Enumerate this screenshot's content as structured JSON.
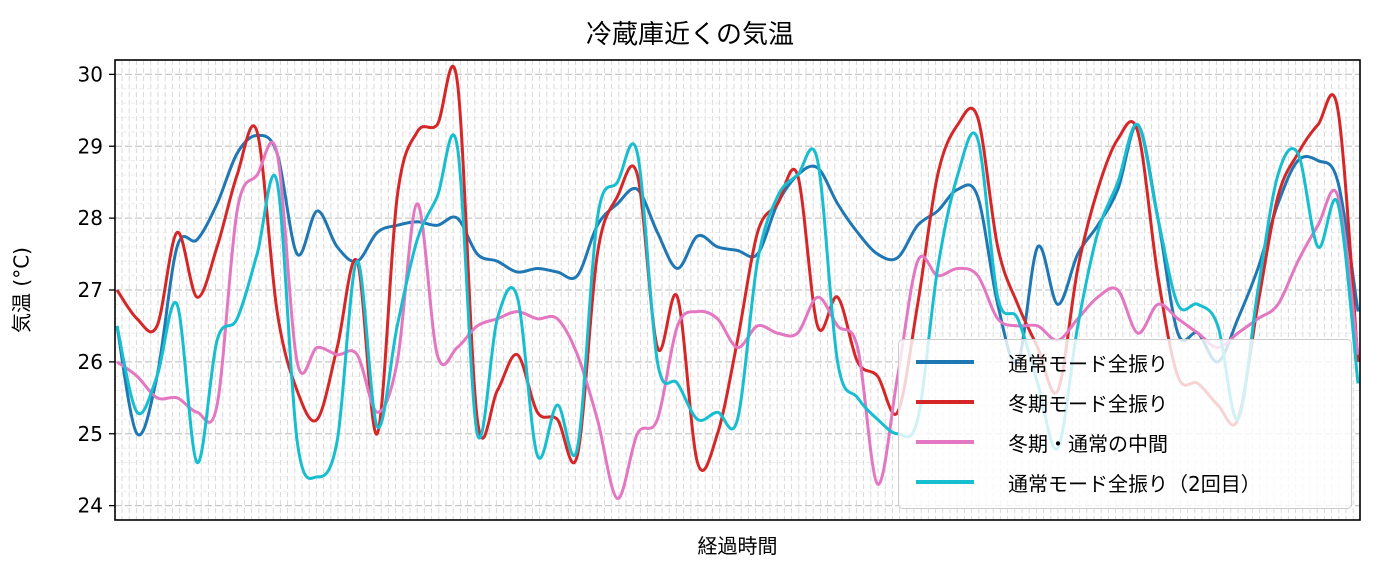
{
  "chart_data": {
    "type": "line",
    "title": "冷蔵庫近くの気温",
    "xlabel": "経過時間",
    "ylabel": "気温 (°C)",
    "ylim": [
      23.8,
      30.2
    ],
    "yticks": [
      24,
      25,
      26,
      27,
      28,
      29,
      30
    ],
    "xticks_labeled": false,
    "grid": {
      "major": true,
      "minor": true,
      "style": "dashed",
      "color": "#cccccc"
    },
    "legend_position": "lower right",
    "x": [
      0,
      1,
      2,
      3,
      4,
      5,
      6,
      7,
      8,
      9,
      10,
      11,
      12,
      13,
      14,
      15,
      16,
      17,
      18,
      19,
      20,
      21,
      22,
      23,
      24,
      25,
      26,
      27,
      28,
      29,
      30,
      31,
      32,
      33,
      34,
      35,
      36,
      37,
      38,
      39,
      40,
      41,
      42,
      43,
      44,
      45,
      46,
      47,
      48,
      49,
      50,
      51,
      52,
      53,
      54,
      55,
      56,
      57,
      58,
      59,
      60,
      61,
      62
    ],
    "series": [
      {
        "name": "通常モード全振り",
        "color": "#1f77b4",
        "values": [
          26.5,
          25.0,
          25.8,
          27.6,
          27.7,
          28.2,
          28.9,
          29.15,
          28.9,
          27.5,
          28.1,
          27.6,
          27.4,
          27.8,
          27.9,
          27.95,
          27.9,
          28.0,
          27.5,
          27.4,
          27.25,
          27.3,
          27.25,
          27.2,
          27.9,
          28.2,
          28.4,
          27.8,
          27.3,
          27.75,
          27.6,
          27.55,
          27.5,
          28.2,
          28.6,
          28.7,
          28.2,
          27.8,
          27.5,
          27.45,
          27.9,
          28.1,
          28.4,
          28.3,
          26.8,
          26.0,
          27.6,
          26.8,
          27.5,
          27.9,
          28.4,
          29.3,
          28.0,
          26.4,
          26.4,
          26.0,
          26.6,
          27.3,
          28.2,
          28.8,
          28.8,
          28.5,
          26.7
        ]
      },
      {
        "name": "冬期モード全振り",
        "color": "#d62728",
        "values": [
          27.0,
          26.6,
          26.5,
          27.8,
          26.9,
          27.6,
          28.6,
          29.2,
          26.7,
          25.6,
          25.2,
          26.2,
          27.4,
          25.0,
          28.3,
          29.2,
          29.3,
          29.9,
          25.2,
          25.6,
          26.1,
          25.3,
          25.2,
          24.7,
          27.5,
          28.3,
          28.6,
          26.2,
          26.9,
          24.6,
          25.0,
          26.3,
          27.8,
          28.2,
          28.6,
          26.5,
          26.9,
          26.0,
          25.8,
          25.3,
          26.8,
          28.6,
          29.3,
          29.4,
          27.6,
          26.8,
          26.2,
          25.6,
          27.3,
          28.4,
          29.1,
          29.2,
          27.2,
          25.8,
          25.7,
          25.4,
          25.2,
          26.8,
          28.3,
          28.9,
          29.3,
          29.5,
          26.0
        ]
      },
      {
        "name": "冬期・通常の中間",
        "color": "#e377c2",
        "values": [
          26.0,
          25.8,
          25.5,
          25.5,
          25.3,
          25.4,
          28.1,
          28.6,
          28.9,
          26.0,
          26.2,
          26.1,
          26.1,
          25.3,
          26.0,
          28.2,
          26.1,
          26.2,
          26.5,
          26.6,
          26.7,
          26.6,
          26.6,
          26.1,
          25.2,
          24.1,
          25.0,
          25.2,
          26.5,
          26.7,
          26.6,
          26.2,
          26.5,
          26.4,
          26.4,
          26.9,
          26.5,
          26.2,
          24.3,
          25.8,
          27.4,
          27.2,
          27.3,
          27.2,
          26.6,
          26.5,
          26.5,
          26.3,
          26.6,
          26.9,
          27.0,
          26.4,
          26.8,
          26.6,
          26.4,
          26.2,
          26.4,
          26.6,
          26.8,
          27.4,
          27.9,
          28.3,
          26.1
        ]
      },
      {
        "name": "通常モード全振り（2回目）",
        "color": "#17becf",
        "values": [
          26.5,
          25.3,
          25.8,
          26.8,
          24.6,
          26.3,
          26.6,
          27.5,
          28.5,
          24.9,
          24.4,
          24.9,
          27.4,
          25.1,
          26.5,
          27.7,
          28.3,
          29.0,
          25.0,
          26.6,
          26.9,
          24.7,
          25.4,
          24.8,
          28.0,
          28.5,
          28.9,
          26.0,
          25.7,
          25.2,
          25.3,
          25.2,
          27.4,
          28.3,
          28.6,
          28.8,
          26.0,
          25.5,
          25.2,
          25.0,
          25.2,
          27.3,
          28.6,
          29.1,
          26.9,
          26.6,
          25.7,
          24.8,
          26.5,
          27.8,
          28.5,
          29.3,
          28.0,
          26.8,
          26.8,
          26.5,
          25.2,
          27.0,
          28.6,
          28.9,
          27.6,
          28.2,
          25.7
        ]
      }
    ]
  },
  "labels": {
    "title": "冷蔵庫近くの気温",
    "xlabel": "経過時間",
    "ylabel": "気温 (°C)",
    "legend": [
      "通常モード全振り",
      "冬期モード全振り",
      "冬期・通常の中間",
      "通常モード全振り（2回目）"
    ]
  }
}
